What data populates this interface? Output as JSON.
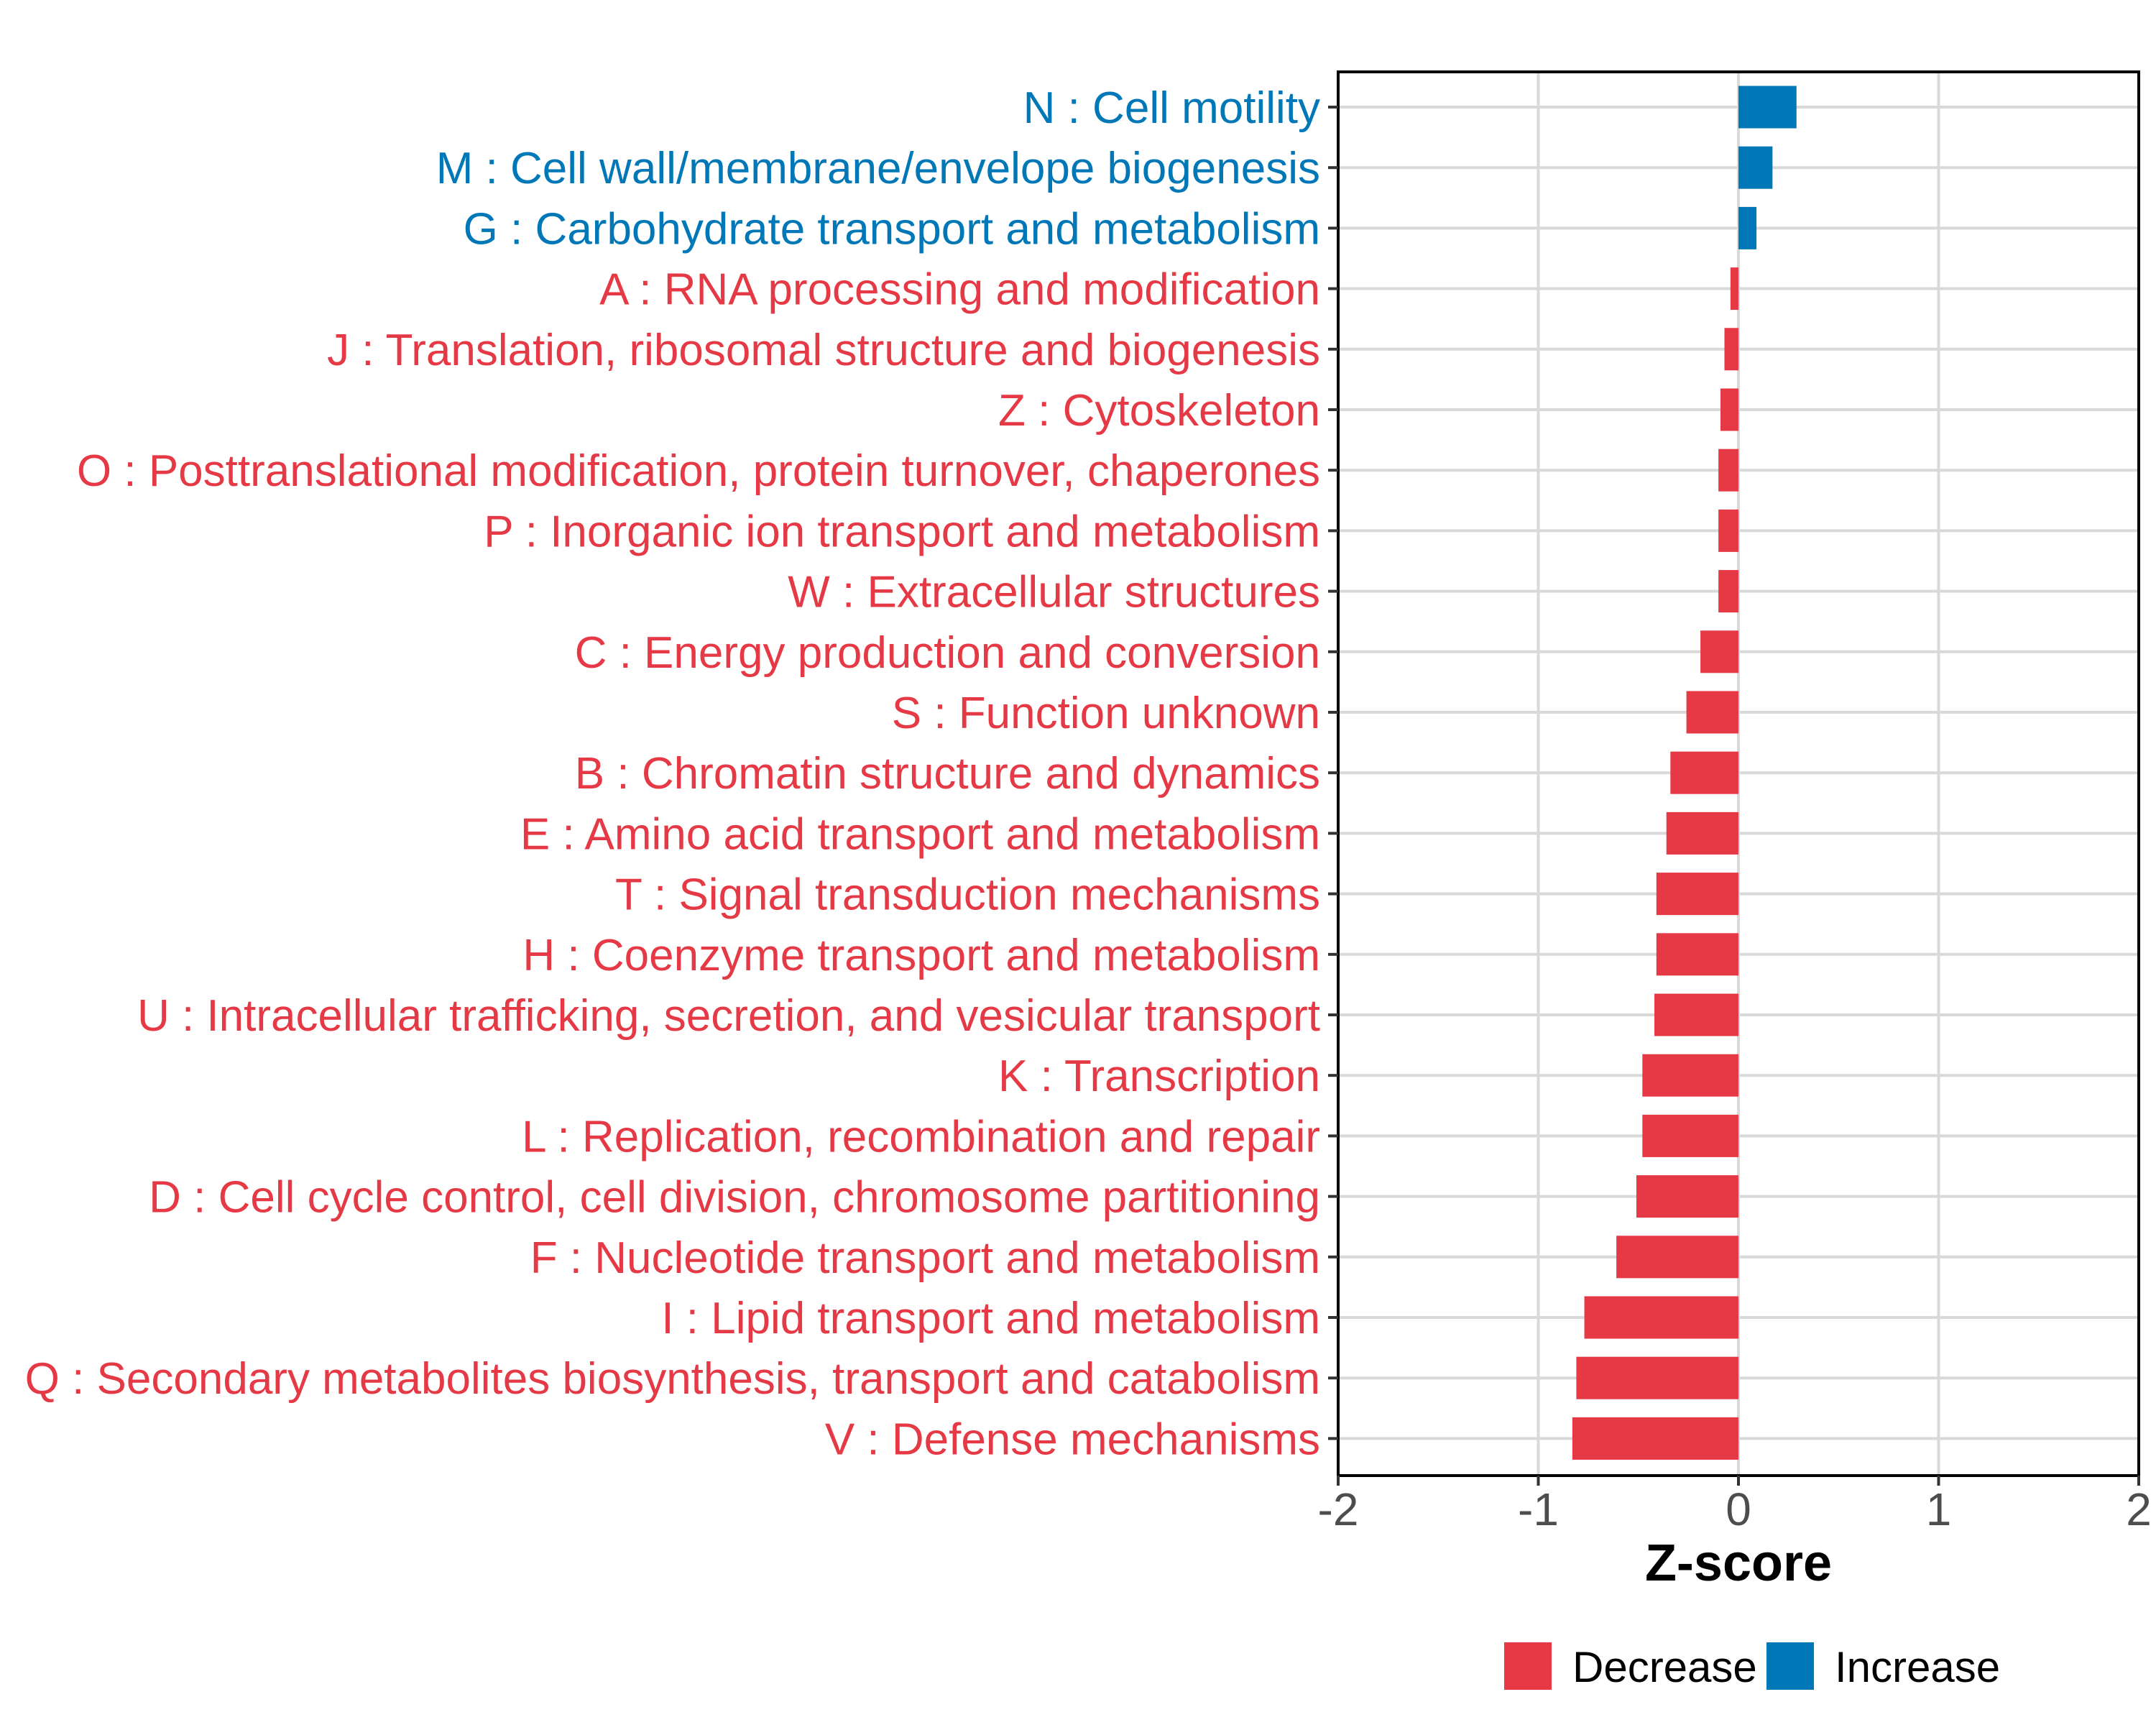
{
  "chart_data": {
    "type": "bar",
    "orientation": "horizontal",
    "title": "",
    "xlabel": "Z-score",
    "ylabel": "",
    "xlim": [
      -2,
      2
    ],
    "xticks": [
      -2,
      -1,
      0,
      1,
      2
    ],
    "xtick_labels": [
      "-2",
      "-1",
      "0",
      "1",
      "2"
    ],
    "grid": true,
    "legend_position": "bottom",
    "colors": {
      "Decrease": "#E63946",
      "Increase": "#0077B6"
    },
    "legend": [
      {
        "label": "Decrease",
        "color": "#E63946"
      },
      {
        "label": "Increase",
        "color": "#0077B6"
      }
    ],
    "categories": [
      "N : Cell motility",
      "M : Cell wall/membrane/envelope biogenesis",
      "G : Carbohydrate transport and metabolism",
      "A : RNA processing and modification",
      "J : Translation, ribosomal structure and biogenesis",
      "Z : Cytoskeleton",
      "O : Posttranslational modification, protein turnover, chaperones",
      "P : Inorganic ion transport and metabolism",
      "W : Extracellular structures",
      "C : Energy production and conversion",
      "S : Function unknown",
      "B : Chromatin structure and dynamics",
      "E : Amino acid transport and metabolism",
      "T : Signal transduction mechanisms",
      "H : Coenzyme transport and metabolism",
      "U : Intracellular trafficking, secretion, and vesicular transport",
      "K : Transcription",
      "L : Replication, recombination and repair",
      "D : Cell cycle control, cell division, chromosome partitioning",
      "F : Nucleotide transport and metabolism",
      "I : Lipid transport and metabolism",
      "Q : Secondary metabolites biosynthesis, transport and catabolism",
      "V : Defense mechanisms"
    ],
    "values": [
      0.29,
      0.17,
      0.09,
      -0.04,
      -0.07,
      -0.09,
      -0.1,
      -0.1,
      -0.1,
      -0.19,
      -0.26,
      -0.34,
      -0.36,
      -0.41,
      -0.41,
      -0.42,
      -0.48,
      -0.48,
      -0.51,
      -0.61,
      -0.77,
      -0.81,
      -0.83
    ],
    "groups": [
      "Increase",
      "Increase",
      "Increase",
      "Decrease",
      "Decrease",
      "Decrease",
      "Decrease",
      "Decrease",
      "Decrease",
      "Decrease",
      "Decrease",
      "Decrease",
      "Decrease",
      "Decrease",
      "Decrease",
      "Decrease",
      "Decrease",
      "Decrease",
      "Decrease",
      "Decrease",
      "Decrease",
      "Decrease",
      "Decrease"
    ]
  }
}
